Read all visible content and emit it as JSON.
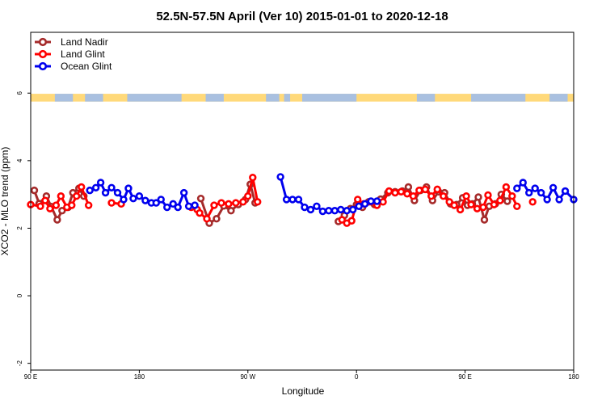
{
  "chart_data": {
    "type": "line",
    "title": "52.5N-57.5N April (Ver 10)   2015-01-01 to 2020-12-18",
    "xlabel": "Longitude",
    "ylabel": "XCO2 - MLO trend (ppm)",
    "x_ticks": [
      {
        "value": 90,
        "label": "90 E"
      },
      {
        "value": 180,
        "label": "180"
      },
      {
        "value": 270,
        "label": "90 W"
      },
      {
        "value": 360,
        "label": "0"
      },
      {
        "value": 450,
        "label": "90 E"
      },
      {
        "value": 540,
        "label": "180"
      }
    ],
    "y_ticks": [
      -2,
      0,
      2,
      4,
      6
    ],
    "xlim": [
      90,
      540
    ],
    "ylim": [
      -2.2,
      7.8
    ],
    "grid": false,
    "legend_position": "top-left",
    "land_ocean_strip": {
      "y_range": [
        5.75,
        5.98
      ],
      "land_color": "#FFD97A",
      "ocean_color": "#A9C0E0"
    },
    "series": [
      {
        "name": "Land Nadir",
        "color": "#A52A2A",
        "segments": [
          [
            [
              93,
              3.12
            ],
            [
              97,
              2.73
            ],
            [
              103,
              2.95
            ],
            [
              107,
              2.64
            ],
            [
              112,
              2.25
            ],
            [
              116,
              2.52
            ],
            [
              121,
              2.62
            ],
            [
              125,
              3.05
            ],
            [
              130,
              3.18
            ],
            [
              134,
              2.95
            ]
          ],
          [
            [
              231,
              2.88
            ],
            [
              238,
              2.15
            ],
            [
              244,
              2.28
            ],
            [
              250,
              2.66
            ],
            [
              256,
              2.52
            ],
            [
              262,
              2.7
            ],
            [
              268,
              2.85
            ],
            [
              272,
              3.3
            ],
            [
              276,
              2.75
            ]
          ],
          [
            [
              345,
              2.2
            ],
            [
              350,
              2.38
            ],
            [
              355,
              2.58
            ],
            [
              360,
              2.7
            ],
            [
              365,
              2.62
            ],
            [
              370,
              2.78
            ],
            [
              375,
              2.7
            ],
            [
              380,
              2.86
            ],
            [
              386,
              3.05
            ],
            [
              392,
              3.08
            ],
            [
              398,
              3.1
            ],
            [
              403,
              3.22
            ],
            [
              408,
              2.82
            ],
            [
              413,
              3.12
            ],
            [
              418,
              3.22
            ],
            [
              423,
              2.82
            ],
            [
              428,
              3.08
            ],
            [
              433,
              3.05
            ],
            [
              438,
              2.72
            ],
            [
              443,
              2.7
            ],
            [
              448,
              2.9
            ],
            [
              452,
              2.68
            ],
            [
              456,
              2.72
            ],
            [
              461,
              2.92
            ],
            [
              466,
              2.25
            ],
            [
              470,
              2.65
            ],
            [
              475,
              2.72
            ],
            [
              480,
              3.0
            ],
            [
              485,
              2.8
            ]
          ]
        ]
      },
      {
        "name": "Land Glint",
        "color": "#FF0000",
        "segments": [
          [
            [
              90,
              2.7
            ],
            [
              98,
              2.65
            ],
            [
              102,
              2.82
            ],
            [
              106,
              2.58
            ],
            [
              111,
              2.68
            ],
            [
              115,
              2.95
            ],
            [
              120,
              2.62
            ],
            [
              124,
              2.68
            ],
            [
              128,
              2.95
            ],
            [
              132,
              3.22
            ],
            [
              138,
              2.68
            ]
          ],
          [
            [
              157,
              2.75
            ],
            [
              165,
              2.72
            ]
          ],
          [
            [
              223,
              2.62
            ],
            [
              228,
              2.55
            ]
          ],
          [
            [
              230,
              2.45
            ],
            [
              236,
              2.28
            ],
            [
              242,
              2.68
            ],
            [
              248,
              2.75
            ],
            [
              254,
              2.72
            ],
            [
              260,
              2.75
            ],
            [
              266,
              2.78
            ],
            [
              270,
              2.95
            ],
            [
              274,
              3.5
            ],
            [
              278,
              2.78
            ]
          ],
          [
            [
              348,
              2.25
            ],
            [
              352,
              2.15
            ],
            [
              356,
              2.22
            ],
            [
              361,
              2.85
            ],
            [
              366,
              2.72
            ]
          ],
          [
            [
              372,
              2.78
            ],
            [
              377,
              2.68
            ],
            [
              382,
              2.78
            ],
            [
              387,
              3.1
            ],
            [
              392,
              3.05
            ],
            [
              397,
              3.08
            ],
            [
              402,
              3.02
            ],
            [
              407,
              2.95
            ],
            [
              412,
              3.12
            ],
            [
              417,
              3.15
            ],
            [
              422,
              2.95
            ],
            [
              427,
              3.15
            ],
            [
              432,
              2.95
            ],
            [
              437,
              2.78
            ],
            [
              441,
              2.68
            ],
            [
              446,
              2.55
            ],
            [
              451,
              2.95
            ],
            [
              455,
              2.7
            ],
            [
              460,
              2.58
            ],
            [
              465,
              2.62
            ],
            [
              469,
              2.98
            ],
            [
              474,
              2.7
            ],
            [
              479,
              2.82
            ],
            [
              484,
              3.22
            ],
            [
              489,
              2.95
            ],
            [
              493,
              2.65
            ]
          ],
          [
            [
              506,
              2.78
            ]
          ]
        ]
      },
      {
        "name": "Ocean Glint",
        "color": "#0000EE",
        "segments": [
          [
            [
              139,
              3.12
            ],
            [
              144,
              3.2
            ],
            [
              148,
              3.35
            ],
            [
              152,
              3.05
            ],
            [
              157,
              3.2
            ],
            [
              162,
              3.05
            ],
            [
              167,
              2.85
            ],
            [
              171,
              3.18
            ],
            [
              175,
              2.88
            ],
            [
              180,
              2.95
            ],
            [
              185,
              2.82
            ],
            [
              190,
              2.75
            ],
            [
              194,
              2.75
            ],
            [
              198,
              2.85
            ],
            [
              203,
              2.62
            ],
            [
              208,
              2.72
            ],
            [
              212,
              2.62
            ],
            [
              217,
              3.05
            ],
            [
              221,
              2.65
            ],
            [
              226,
              2.68
            ]
          ],
          [
            [
              297,
              3.52
            ],
            [
              302,
              2.85
            ],
            [
              307,
              2.85
            ],
            [
              312,
              2.85
            ],
            [
              317,
              2.62
            ],
            [
              322,
              2.55
            ],
            [
              327,
              2.65
            ],
            [
              332,
              2.5
            ],
            [
              337,
              2.52
            ],
            [
              342,
              2.52
            ],
            [
              347,
              2.55
            ],
            [
              352,
              2.52
            ],
            [
              357,
              2.55
            ],
            [
              362,
              2.65
            ],
            [
              367,
              2.72
            ],
            [
              372,
              2.8
            ],
            [
              377,
              2.8
            ]
          ],
          [
            [
              493,
              3.18
            ],
            [
              498,
              3.35
            ],
            [
              503,
              3.05
            ],
            [
              508,
              3.18
            ],
            [
              513,
              3.05
            ],
            [
              518,
              2.85
            ],
            [
              523,
              3.2
            ],
            [
              528,
              2.85
            ],
            [
              533,
              3.1
            ],
            [
              540,
              2.85
            ]
          ]
        ]
      }
    ]
  }
}
